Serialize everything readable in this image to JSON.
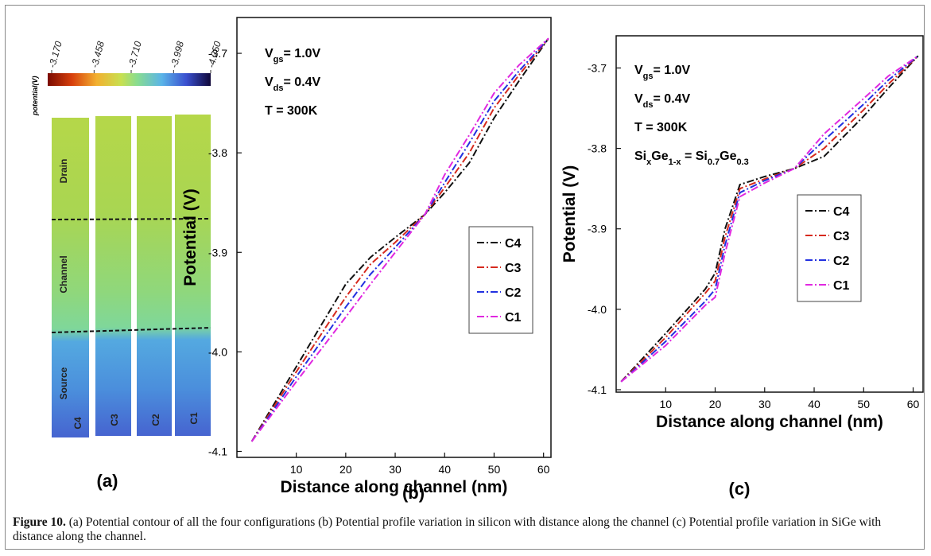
{
  "panel_labels": [
    "(a)",
    "(b)",
    "(c)"
  ],
  "contour": {
    "scale_label": "potential(V)",
    "scale_ticks": [
      {
        "value": -3.17,
        "label": "-3.170"
      },
      -3.458,
      {
        "value": -3.71,
        "label": "-3.710"
      },
      -3.998,
      {
        "value": -4.25,
        "label": "-4.250"
      }
    ],
    "regions": [
      "Drain",
      "Channel",
      "Source"
    ],
    "columns": [
      "C4",
      "C3",
      "C2",
      "C1"
    ]
  },
  "chart_data": [
    {
      "type": "line",
      "line_style": "dashdot",
      "legend": "right",
      "xlabel": "Distance along channel (nm)",
      "ylabel": "Potential (V)",
      "annotations": [
        [
          {
            "text": "V"
          },
          {
            "text": "gs",
            "sub": true
          },
          {
            "text": "= 1.0V"
          }
        ],
        [
          {
            "text": "V"
          },
          {
            "text": "ds",
            "sub": true
          },
          {
            "text": "= 0.4V"
          }
        ],
        [
          {
            "text": "T = 300K"
          }
        ]
      ],
      "x": [
        1,
        10,
        20,
        25,
        30,
        36,
        40,
        45,
        50,
        55,
        61
      ],
      "series": [
        {
          "name": "C4",
          "color": "#111111",
          "values": [
            -4.09,
            -4.015,
            -3.932,
            -3.905,
            -3.885,
            -3.862,
            -3.84,
            -3.81,
            -3.765,
            -3.728,
            -3.685
          ]
        },
        {
          "name": "C3",
          "color": "#d62a1e",
          "values": [
            -4.09,
            -4.02,
            -3.945,
            -3.912,
            -3.89,
            -3.862,
            -3.835,
            -3.8,
            -3.755,
            -3.722,
            -3.685
          ]
        },
        {
          "name": "C2",
          "color": "#2230e0",
          "values": [
            -4.09,
            -4.025,
            -3.955,
            -3.922,
            -3.895,
            -3.862,
            -3.83,
            -3.79,
            -3.748,
            -3.718,
            -3.685
          ]
        },
        {
          "name": "C1",
          "color": "#e028e0",
          "values": [
            -4.09,
            -4.03,
            -3.965,
            -3.932,
            -3.9,
            -3.862,
            -3.822,
            -3.782,
            -3.74,
            -3.712,
            -3.685
          ]
        }
      ],
      "xlim": [
        -2,
        61.5
      ],
      "ylim": [
        -4.106,
        -3.664
      ],
      "xticks": [
        10,
        20,
        30,
        40,
        50,
        60
      ],
      "yticks": [
        -3.7,
        -3.8,
        -3.9,
        {
          "value": -4.0,
          "label": "-4.0"
        },
        -4.1
      ]
    },
    {
      "type": "line",
      "line_style": "dashdot",
      "legend": "right",
      "xlabel": "Distance along channel (nm)",
      "ylabel": "Potential (V)",
      "annotations": [
        [
          {
            "text": "V"
          },
          {
            "text": "gs",
            "sub": true
          },
          {
            "text": "= 1.0V"
          }
        ],
        [
          {
            "text": "V"
          },
          {
            "text": "ds",
            "sub": true
          },
          {
            "text": "= 0.4V"
          }
        ],
        [
          {
            "text": "T = 300K"
          }
        ],
        [
          {
            "text": "Si"
          },
          {
            "text": "x",
            "sub": true
          },
          {
            "text": "Ge"
          },
          {
            "text": "1-x",
            "sub": true
          },
          {
            "text": " = Si"
          },
          {
            "text": "0.7",
            "sub": true
          },
          {
            "text": "Ge"
          },
          {
            "text": "0.3",
            "sub": true
          }
        ]
      ],
      "x": [
        1,
        10,
        18,
        20,
        22,
        25,
        30,
        36,
        42,
        50,
        55,
        61
      ],
      "series": [
        {
          "name": "C4",
          "color": "#111111",
          "values": [
            -4.09,
            -4.03,
            -3.975,
            -3.955,
            -3.9,
            -3.845,
            -3.835,
            -3.825,
            -3.81,
            -3.76,
            -3.725,
            -3.685
          ]
        },
        {
          "name": "C3",
          "color": "#d62a1e",
          "values": [
            -4.09,
            -4.035,
            -3.98,
            -3.965,
            -3.91,
            -3.85,
            -3.838,
            -3.825,
            -3.8,
            -3.752,
            -3.72,
            -3.685
          ]
        },
        {
          "name": "C2",
          "color": "#2230e0",
          "values": [
            -4.09,
            -4.04,
            -3.99,
            -3.975,
            -3.92,
            -3.855,
            -3.84,
            -3.825,
            -3.79,
            -3.745,
            -3.715,
            -3.685
          ]
        },
        {
          "name": "C1",
          "color": "#e028e0",
          "values": [
            -4.09,
            -4.045,
            -3.995,
            -3.985,
            -3.93,
            -3.86,
            -3.843,
            -3.825,
            -3.782,
            -3.738,
            -3.71,
            -3.685
          ]
        }
      ],
      "xlim": [
        0,
        62
      ],
      "ylim": [
        -4.103,
        -3.66
      ],
      "xticks": [
        10,
        20,
        30,
        40,
        50,
        60
      ],
      "yticks": [
        -3.7,
        -3.8,
        -3.9,
        {
          "value": -4.0,
          "label": "-4.0"
        },
        -4.1
      ]
    }
  ],
  "caption": {
    "label": "Figure 10.",
    "text": "(a) Potential contour of all the four configurations (b) Potential profile variation in silicon with distance along the channel (c) Potential profile variation in SiGe with distance along the channel."
  }
}
